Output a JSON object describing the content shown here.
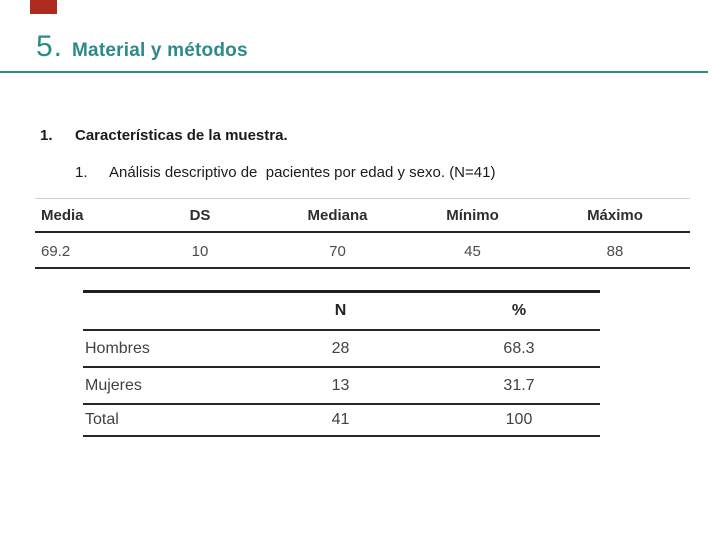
{
  "slide": {
    "accent_color": "#2c8a8d",
    "accent_bar_color": "#ae2b20",
    "title": {
      "number": "5.",
      "text": "Material y métodos"
    },
    "outline": {
      "item_number": "1.",
      "item_text": "Características de la muestra.",
      "subitem_number": "1.",
      "subitem_text": "Análisis descriptivo de  pacientes por edad y sexo. (N=41)"
    }
  },
  "stats_table": {
    "headers": [
      "Media",
      "DS",
      "Mediana",
      "Mínimo",
      "Máximo"
    ],
    "values": [
      "69.2",
      "10",
      "70",
      "45",
      "88"
    ]
  },
  "sex_table": {
    "col_n_header": "N",
    "col_pct_header": "%",
    "rows": [
      {
        "label": "Hombres",
        "n": "28",
        "pct": "68.3"
      },
      {
        "label": "Mujeres",
        "n": "13",
        "pct": "31.7"
      },
      {
        "label": "Total",
        "n": "41",
        "pct": "100"
      }
    ]
  }
}
